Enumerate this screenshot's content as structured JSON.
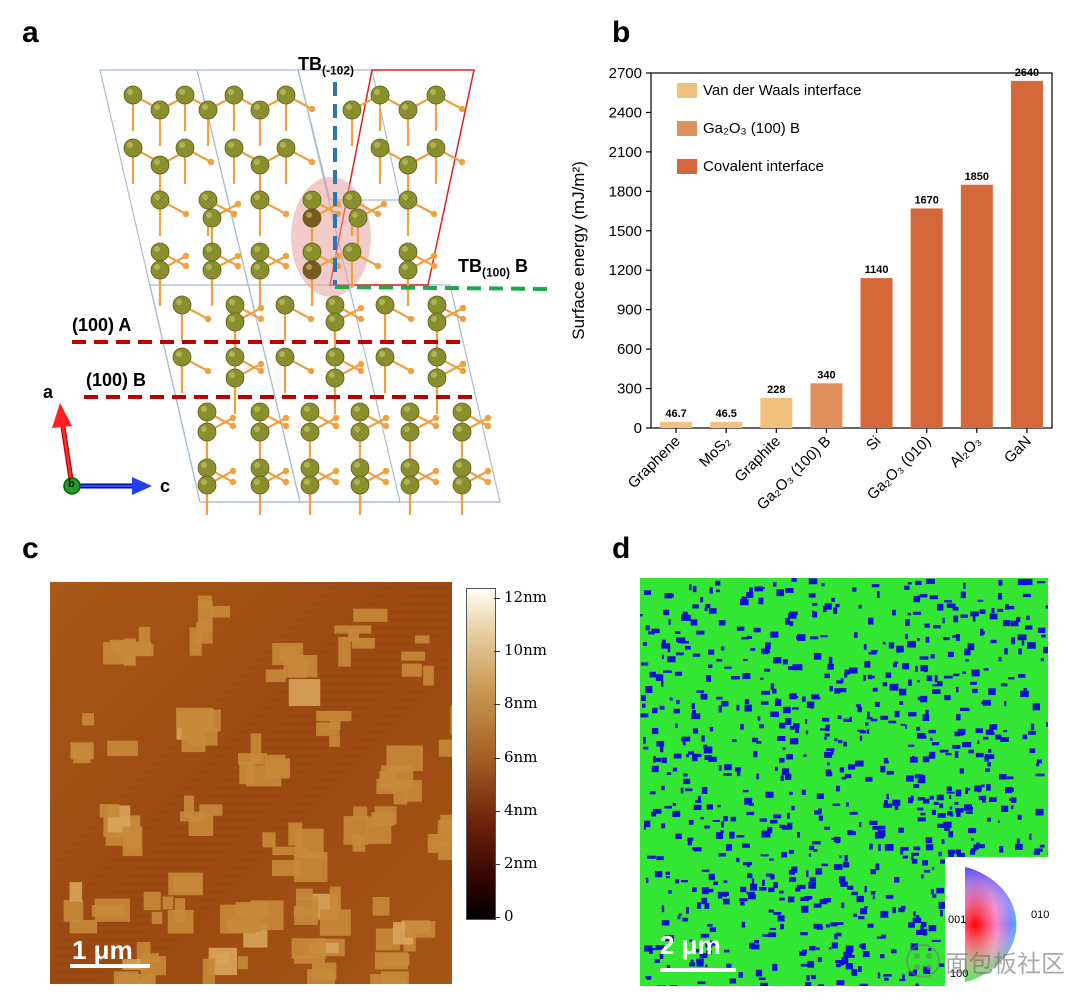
{
  "panels": {
    "a": "a",
    "b": "b",
    "c": "c",
    "d": "d"
  },
  "panel_a": {
    "label_tb_102": "TB",
    "label_tb_102_sub": "(-102)",
    "label_tb100b": "TB",
    "label_tb100b_sub": "(100)",
    "label_tb100b_suffix": " B",
    "label_100a": "(100) A",
    "label_100b": "(100) B",
    "axis_a": "a",
    "axis_b": "b",
    "axis_c": "c"
  },
  "chart_data": {
    "type": "bar",
    "ylabel": "Surface energy (mJ/m²)",
    "ylim": [
      0,
      2700
    ],
    "yticks": [
      0,
      300,
      600,
      900,
      1200,
      1500,
      1800,
      2100,
      2400,
      2700
    ],
    "categories": [
      "Graphene",
      "MoS₂",
      "Graphite",
      "Ga₂O₃ (100) B",
      "Si",
      "Ga₂O₃ (010)",
      "Al₂O₃",
      "GaN"
    ],
    "values": [
      46.7,
      46.5,
      228,
      340,
      1140,
      1670,
      1850,
      2640
    ],
    "value_labels": [
      "46.7",
      "46.5",
      "228",
      "340",
      "1140",
      "1670",
      "1850",
      "2640"
    ],
    "groups": [
      0,
      0,
      0,
      1,
      2,
      2,
      2,
      2
    ],
    "legend": [
      {
        "label": "Van der Waals interface",
        "color": "#F1C27D"
      },
      {
        "label": "Ga₂O₃ (100) B",
        "color": "#E0905A"
      },
      {
        "label": "Covalent interface",
        "color": "#D4683A"
      }
    ],
    "legend_position": "top-left",
    "grid": false
  },
  "panel_c": {
    "colorbar_ticks": [
      "12nm",
      "10nm",
      "8nm",
      "6nm",
      "4nm",
      "2nm",
      "0"
    ],
    "scalebar": "1 μm"
  },
  "panel_d": {
    "scalebar": "2 μm",
    "ipf_labels": [
      "001",
      "010",
      "100"
    ],
    "watermark": "面包板社区"
  },
  "colors": {
    "dark_red_line": "#C00000",
    "blue_dash": "#2E75B6",
    "green_dash": "#1FA84A",
    "ga_atom": "#8A8F2E",
    "o_atom": "#F0A040",
    "ebsd_green": "#33E633",
    "ebsd_blue": "#1010D0"
  }
}
